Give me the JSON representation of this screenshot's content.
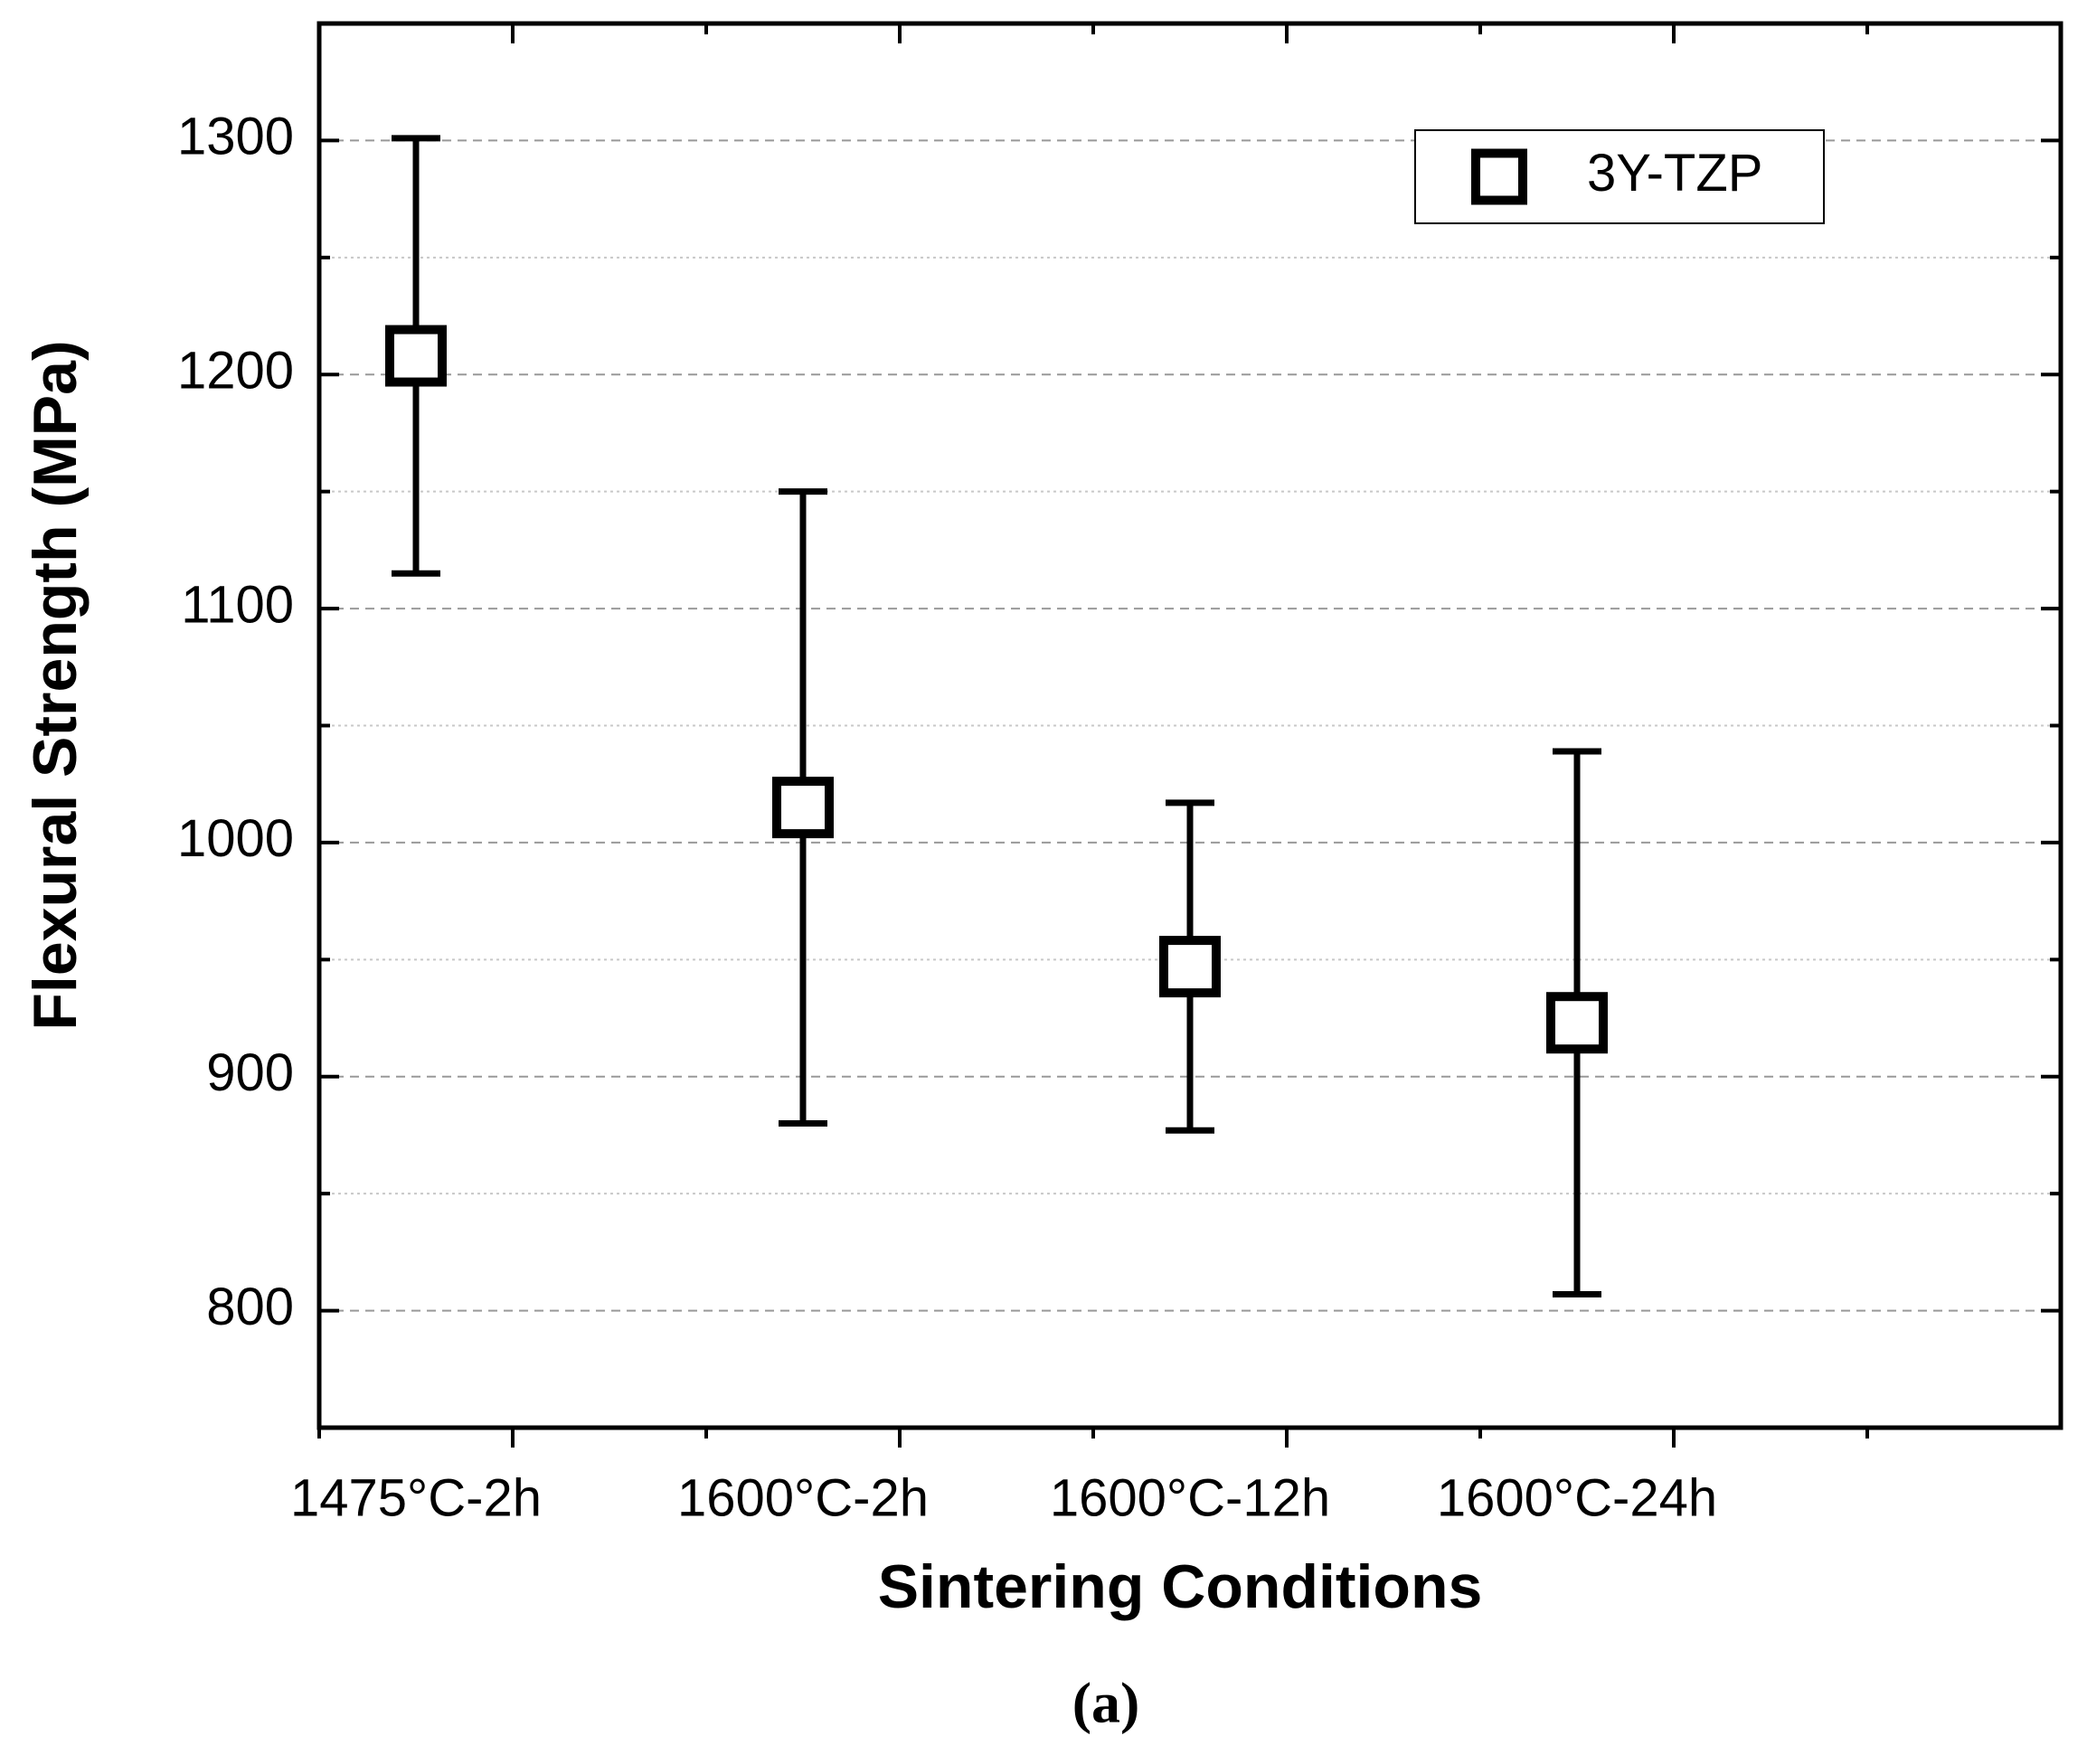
{
  "chart_data": {
    "type": "errorbar",
    "x_label": "Sintering Conditions",
    "y_label": "Flexural Strength (MPa)",
    "caption": "(a)",
    "categories": [
      "1475°C-2h",
      "1600°C-2h",
      "1600°C-12h",
      "1600°C-24h"
    ],
    "series": [
      {
        "name": "3Y-TZP",
        "color": "#000000",
        "values": [
          1208,
          1015,
          947,
          923
        ],
        "errors": [
          93,
          135,
          70,
          116
        ]
      }
    ],
    "ylim": [
      750,
      1350
    ],
    "yticks": [
      800,
      900,
      1000,
      1100,
      1200,
      1300
    ],
    "grid": true,
    "legend": "top-right"
  }
}
